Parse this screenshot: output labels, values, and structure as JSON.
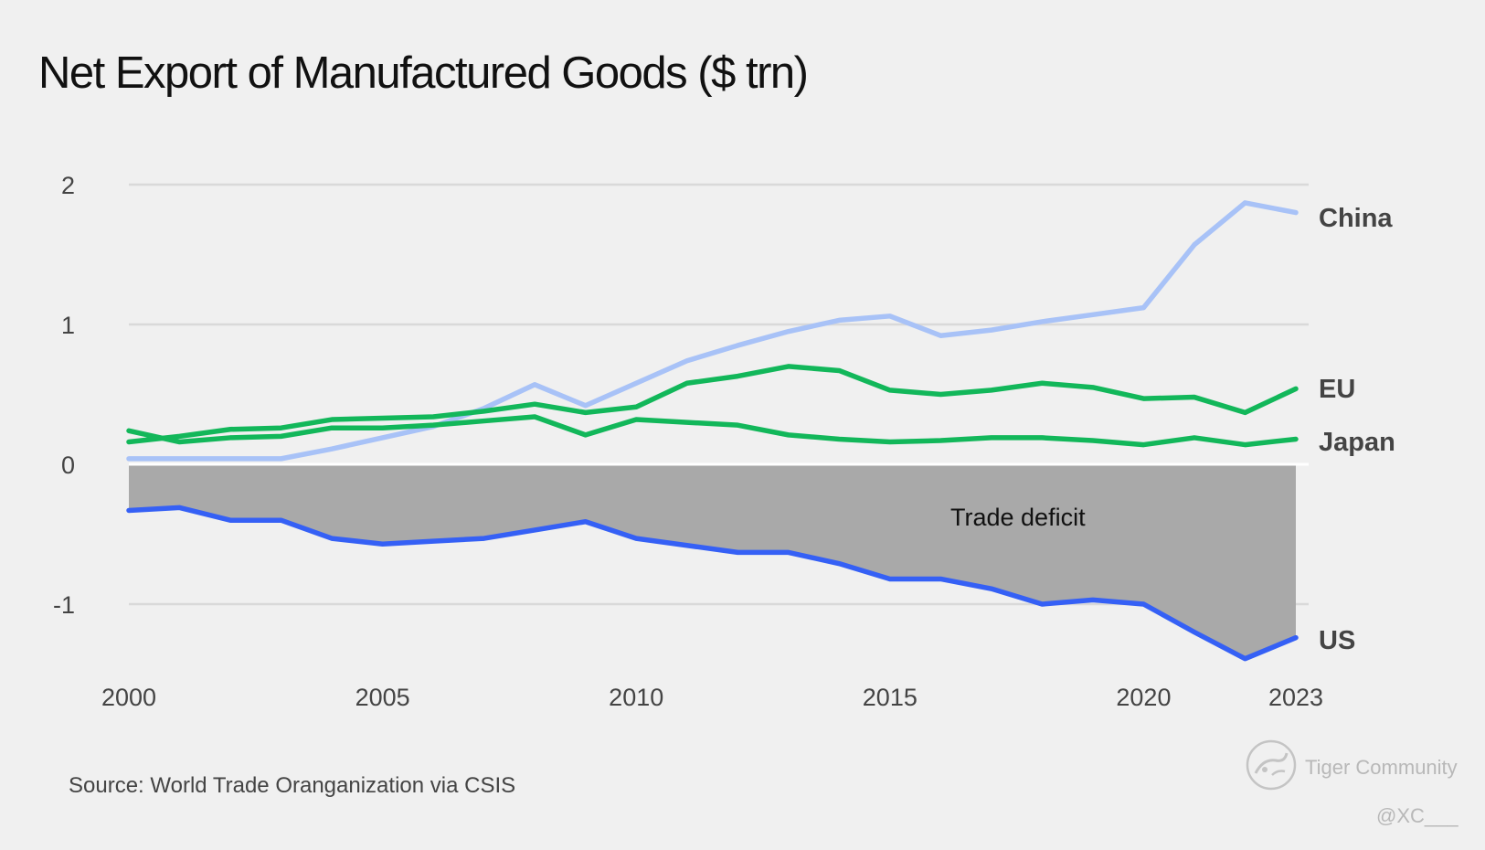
{
  "title": "Net Export of Manufactured Goods ($ trn)",
  "source": "Source: World Trade Oranganization via CSIS",
  "watermark": {
    "brand": "Tiger Community",
    "handle": "@XC___",
    "icon": "tiger-logo-icon"
  },
  "colors": {
    "background": "#f0f0f0",
    "china": "#a8c2f7",
    "eu": "#12b75a",
    "japan": "#12b75a",
    "us": "#3560f5",
    "deficit_area": "#a9a9a9",
    "grid": "#d9d9d9",
    "zero_line": "#ffffff"
  },
  "chart_data": {
    "type": "line",
    "title": "Net Export of Manufactured Goods ($ trn)",
    "xlabel": "",
    "ylabel": "",
    "xlim": [
      2000,
      2023
    ],
    "ylim": [
      -1.4,
      2
    ],
    "x_ticks": [
      "2000",
      "2005",
      "2010",
      "2015",
      "2020",
      "2023"
    ],
    "y_ticks": [
      "2",
      "1",
      "0",
      "-1"
    ],
    "grid": true,
    "area_label": "Trade deficit",
    "x": [
      2000,
      2001,
      2002,
      2003,
      2004,
      2005,
      2006,
      2007,
      2008,
      2009,
      2010,
      2011,
      2012,
      2013,
      2014,
      2015,
      2016,
      2017,
      2018,
      2019,
      2020,
      2021,
      2022,
      2023
    ],
    "series": [
      {
        "name": "China",
        "values": [
          0.04,
          0.04,
          0.04,
          0.04,
          0.11,
          0.19,
          0.27,
          0.4,
          0.57,
          0.42,
          0.58,
          0.74,
          0.85,
          0.95,
          1.03,
          1.06,
          0.92,
          0.96,
          1.02,
          1.07,
          1.12,
          1.57,
          1.87,
          1.8
        ]
      },
      {
        "name": "EU",
        "values": [
          0.16,
          0.2,
          0.25,
          0.26,
          0.32,
          0.33,
          0.34,
          0.38,
          0.43,
          0.37,
          0.41,
          0.58,
          0.63,
          0.7,
          0.67,
          0.53,
          0.5,
          0.53,
          0.58,
          0.55,
          0.47,
          0.48,
          0.37,
          0.54
        ]
      },
      {
        "name": "Japan",
        "values": [
          0.24,
          0.16,
          0.19,
          0.2,
          0.26,
          0.26,
          0.28,
          0.31,
          0.34,
          0.21,
          0.32,
          0.3,
          0.28,
          0.21,
          0.18,
          0.16,
          0.17,
          0.19,
          0.19,
          0.17,
          0.14,
          0.19,
          0.14,
          0.18
        ]
      },
      {
        "name": "US",
        "values": [
          -0.33,
          -0.31,
          -0.4,
          -0.4,
          -0.53,
          -0.57,
          -0.55,
          -0.53,
          -0.47,
          -0.41,
          -0.53,
          -0.58,
          -0.63,
          -0.63,
          -0.71,
          -0.82,
          -0.82,
          -0.89,
          -1.0,
          -0.97,
          -1.0,
          -1.2,
          -1.39,
          -1.24
        ]
      }
    ]
  }
}
